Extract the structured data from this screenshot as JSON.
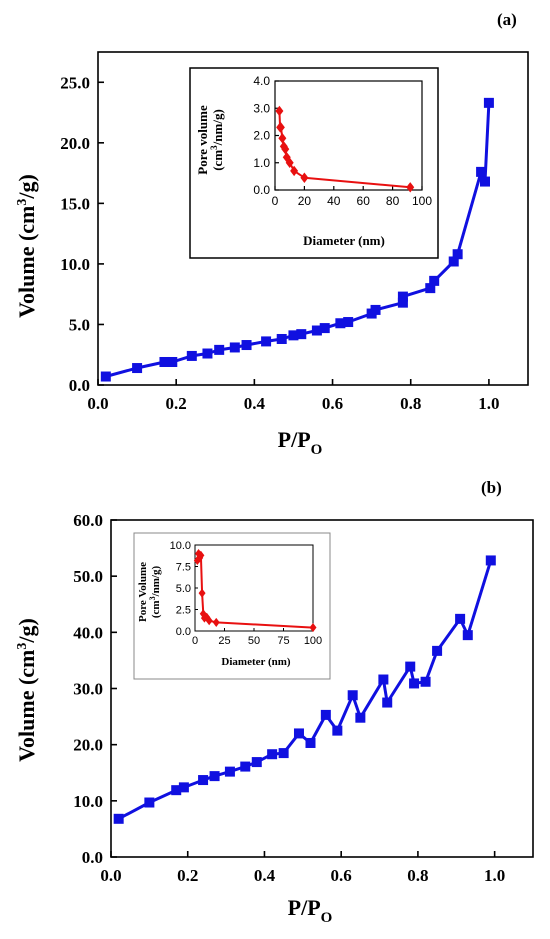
{
  "chart_data": [
    {
      "panel_label": "(a)",
      "type": "line",
      "xlabel": "P/P",
      "xlabel_sub": "O",
      "ylabel": "Volume (cm",
      "ylabel_sup": "3",
      "ylabel_end": "/g)",
      "xlim": [
        0.0,
        1.1
      ],
      "ylim": [
        0.0,
        27.5
      ],
      "xticks": [
        "0.0",
        "0.2",
        "0.4",
        "0.6",
        "0.8",
        "1.0"
      ],
      "yticks": [
        "0.0",
        "5.0",
        "10.0",
        "15.0",
        "20.0",
        "25.0"
      ],
      "series": [
        {
          "color": "#1010e0",
          "marker": "square",
          "x": [
            0.02,
            0.1,
            0.17,
            0.19,
            0.24,
            0.28,
            0.31,
            0.35,
            0.38,
            0.43,
            0.47,
            0.5,
            0.52,
            0.56,
            0.58,
            0.62,
            0.64,
            0.7,
            0.71,
            0.78,
            0.78,
            0.85,
            0.86,
            0.91,
            0.92,
            0.98,
            0.99,
            1.0
          ],
          "y": [
            0.7,
            1.4,
            1.9,
            1.9,
            2.4,
            2.6,
            2.9,
            3.1,
            3.3,
            3.6,
            3.8,
            4.1,
            4.2,
            4.5,
            4.7,
            5.1,
            5.2,
            5.9,
            6.2,
            6.8,
            7.3,
            8.0,
            8.6,
            10.2,
            10.8,
            17.6,
            16.8,
            23.3
          ]
        }
      ],
      "inset": {
        "type": "line",
        "xlabel": "Diameter (nm)",
        "ylabel_line1": "Pore volume",
        "ylabel_line2a": "(cm",
        "ylabel_line2sup": "3",
        "ylabel_line2b": "/nm/g)",
        "xlim": [
          0,
          100
        ],
        "ylim": [
          0.0,
          4.0
        ],
        "xticks": [
          "0",
          "20",
          "40",
          "60",
          "80",
          "100"
        ],
        "yticks": [
          "0.0",
          "1.0",
          "2.0",
          "3.0",
          "4.0"
        ],
        "series": [
          {
            "color": "#e81010",
            "marker": "diamond",
            "x": [
              3.0,
              3.5,
              4.0,
              5.0,
              6.0,
              7.0,
              8.0,
              10.0,
              13.0,
              20.0,
              92.0
            ],
            "y": [
              2.9,
              2.3,
              2.3,
              1.9,
              1.6,
              1.5,
              1.2,
              1.0,
              0.7,
              0.45,
              0.1
            ]
          }
        ]
      }
    },
    {
      "panel_label": "(b)",
      "type": "line",
      "xlabel": "P/P",
      "xlabel_sub": "O",
      "ylabel": "Volume (cm",
      "ylabel_sup": "3",
      "ylabel_end": "/g)",
      "xlim": [
        0.0,
        1.1
      ],
      "ylim": [
        0.0,
        60.0
      ],
      "xticks": [
        "0.0",
        "0.2",
        "0.4",
        "0.6",
        "0.8",
        "1.0"
      ],
      "yticks": [
        "0.0",
        "10.0",
        "20.0",
        "30.0",
        "40.0",
        "50.0",
        "60.0"
      ],
      "series": [
        {
          "color": "#1010e0",
          "marker": "square",
          "x": [
            0.02,
            0.1,
            0.17,
            0.19,
            0.24,
            0.27,
            0.31,
            0.35,
            0.38,
            0.42,
            0.45,
            0.49,
            0.52,
            0.56,
            0.59,
            0.63,
            0.65,
            0.71,
            0.72,
            0.78,
            0.79,
            0.82,
            0.85,
            0.91,
            0.93,
            0.99
          ],
          "y": [
            6.8,
            9.7,
            11.9,
            12.4,
            13.7,
            14.4,
            15.2,
            16.1,
            16.9,
            18.3,
            18.5,
            22.0,
            20.3,
            25.3,
            22.5,
            28.8,
            24.8,
            31.6,
            27.5,
            33.9,
            30.9,
            31.2,
            36.7,
            42.4,
            39.5,
            52.8
          ]
        }
      ],
      "inset": {
        "type": "line",
        "xlabel": "Diameter (nm)",
        "ylabel_line1": "Pore Volume",
        "ylabel_line2a": "(cm",
        "ylabel_line2sup": "3",
        "ylabel_line2b": "/nm/g)",
        "xlim": [
          0,
          100
        ],
        "ylim": [
          0.0,
          10.0
        ],
        "xticks": [
          "0",
          "25",
          "50",
          "75",
          "100"
        ],
        "yticks": [
          "0.0",
          "2.5",
          "5.0",
          "7.5",
          "10.0"
        ],
        "series": [
          {
            "color": "#e81010",
            "marker": "diamond",
            "x": [
              2.0,
              3.0,
              4.0,
              5.0,
              6.0,
              7.0,
              8.0,
              10.0,
              12.0,
              18.0,
              100.0
            ],
            "y": [
              8.2,
              9.0,
              8.5,
              8.8,
              4.4,
              2.0,
              1.5,
              1.6,
              1.2,
              1.0,
              0.4
            ]
          }
        ]
      }
    }
  ]
}
